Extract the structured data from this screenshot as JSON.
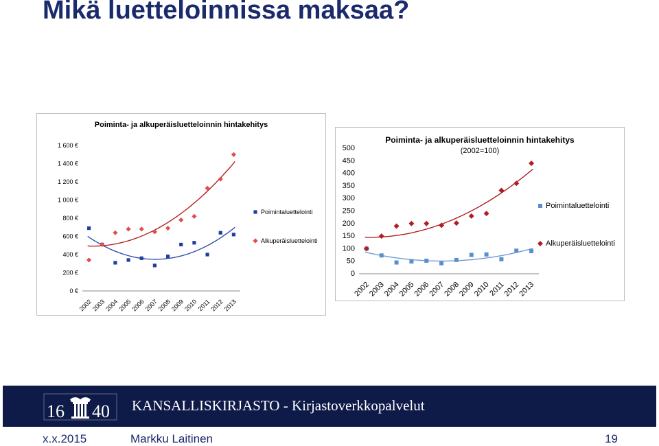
{
  "slide": {
    "title": "Mikä luetteloinnissa maksaa?",
    "organization": "KANSALLISKIRJASTO - Kirjastoverkkopalvelut",
    "logo_text_left": "16",
    "logo_text_right": "40",
    "footer_date": "x.x.2015",
    "footer_author": "Markku Laitinen",
    "page_number": "19"
  },
  "colors": {
    "title": "#1a2a6c",
    "footer_band": "#0e1a47",
    "series_blue_left": "#1f3fa0",
    "series_red_left": "#e0504a",
    "trend_red_left": "#b22222",
    "trend_blue_left": "#3050b0",
    "series_blue_right": "#5b8fc9",
    "series_red_right": "#b01e24",
    "trend_red_right": "#b01e24",
    "trend_blue_right": "#6a9ad8"
  },
  "chart_data": [
    {
      "type": "scatter",
      "title": "Poiminta- ja alkuperäisluetteloinnin hintakehitys",
      "subtitle": "",
      "categories": [
        "2002",
        "2003",
        "2004",
        "2005",
        "2006",
        "2007",
        "2008",
        "2009",
        "2010",
        "2011",
        "2012",
        "2013"
      ],
      "y_ticks": [
        "0 €",
        "200 €",
        "400 €",
        "600 €",
        "800 €",
        "1 000 €",
        "1 200 €",
        "1 400 €",
        "1 600 €"
      ],
      "ylim": [
        0,
        1600
      ],
      "series": [
        {
          "name": "Poimintaluettelointi",
          "marker": "square",
          "values": [
            690,
            510,
            310,
            340,
            360,
            280,
            380,
            510,
            530,
            400,
            640,
            620
          ]
        },
        {
          "name": "Alkuperäisluettelointi",
          "marker": "diamond",
          "values": [
            340,
            510,
            640,
            680,
            680,
            650,
            690,
            780,
            820,
            1130,
            1230,
            1500
          ]
        }
      ],
      "legend": "right",
      "grid": false
    },
    {
      "type": "scatter",
      "title": "Poiminta- ja alkuperäisluetteloinnin hintakehitys",
      "subtitle": "(2002=100)",
      "categories": [
        "2002",
        "2003",
        "2004",
        "2005",
        "2006",
        "2007",
        "2008",
        "2009",
        "2010",
        "2011",
        "2012",
        "2013"
      ],
      "y_ticks": [
        "0",
        "50",
        "100",
        "150",
        "200",
        "250",
        "300",
        "350",
        "400",
        "450",
        "500"
      ],
      "ylim": [
        0,
        500
      ],
      "series": [
        {
          "name": "Poimintaluettelointi",
          "marker": "square",
          "values": [
            100,
            73,
            45,
            49,
            52,
            42,
            55,
            75,
            77,
            58,
            92,
            90
          ]
        },
        {
          "name": "Alkuperäisluettelointi",
          "marker": "diamond",
          "values": [
            100,
            150,
            190,
            200,
            200,
            193,
            202,
            230,
            240,
            332,
            360,
            440
          ]
        }
      ],
      "legend": "right",
      "grid": false
    }
  ]
}
